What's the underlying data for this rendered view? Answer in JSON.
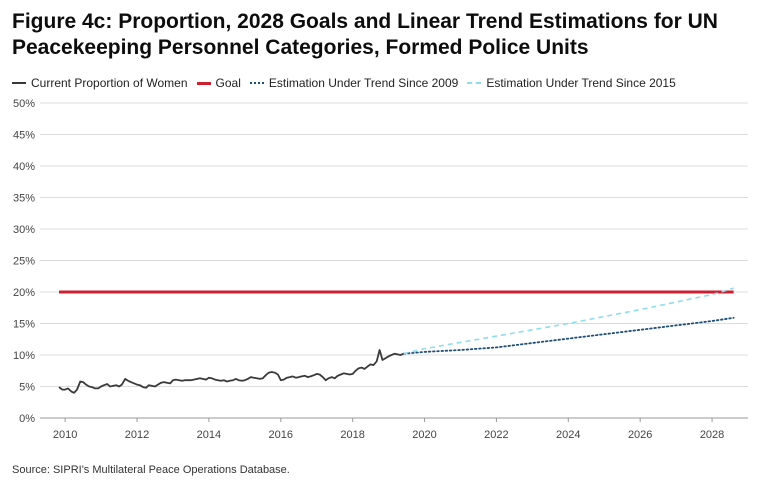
{
  "colors": {
    "current": "#3a3a3a",
    "goal": "#cc1f2f",
    "trend_2009": "#1e4f7a",
    "trend_2015": "#8fdcec",
    "grid": "#dcdcdc",
    "axis_text": "#444444"
  },
  "chart_data": {
    "type": "line",
    "title": "Figure 4c: Proportion, 2028 Goals and Linear Trend Estimations for UN Peacekeeping Personnel Categories, Formed Police Units",
    "xlabel": "",
    "ylabel": "",
    "xlim": [
      2009.3,
      2029.0
    ],
    "ylim": [
      0,
      50
    ],
    "y_unit": "%",
    "grid": "horizontal",
    "legend_position": "top-left",
    "x_ticks": [
      "2010",
      "2012",
      "2014",
      "2016",
      "2018",
      "2020",
      "2022",
      "2024",
      "2026",
      "2028"
    ],
    "y_ticks": [
      "0%",
      "5%",
      "10%",
      "15%",
      "20%",
      "25%",
      "30%",
      "35%",
      "40%",
      "45%",
      "50%"
    ],
    "series": [
      {
        "name": "Current Proportion of Women",
        "style": "solid",
        "x": [
          2009.83,
          2009.92,
          2010.0,
          2010.08,
          2010.17,
          2010.25,
          2010.33,
          2010.42,
          2010.5,
          2010.58,
          2010.67,
          2010.75,
          2010.83,
          2010.92,
          2011.0,
          2011.08,
          2011.17,
          2011.25,
          2011.33,
          2011.42,
          2011.5,
          2011.58,
          2011.67,
          2011.75,
          2011.83,
          2011.92,
          2012.0,
          2012.08,
          2012.17,
          2012.25,
          2012.33,
          2012.42,
          2012.5,
          2012.58,
          2012.67,
          2012.75,
          2012.83,
          2012.92,
          2013.0,
          2013.08,
          2013.17,
          2013.25,
          2013.33,
          2013.42,
          2013.5,
          2013.58,
          2013.67,
          2013.75,
          2013.83,
          2013.92,
          2014.0,
          2014.08,
          2014.17,
          2014.25,
          2014.33,
          2014.42,
          2014.5,
          2014.58,
          2014.67,
          2014.75,
          2014.83,
          2014.92,
          2015.0,
          2015.08,
          2015.17,
          2015.25,
          2015.33,
          2015.42,
          2015.5,
          2015.58,
          2015.67,
          2015.75,
          2015.83,
          2015.92,
          2016.0,
          2016.08,
          2016.17,
          2016.25,
          2016.33,
          2016.42,
          2016.5,
          2016.58,
          2016.67,
          2016.75,
          2016.83,
          2016.92,
          2017.0,
          2017.08,
          2017.17,
          2017.25,
          2017.33,
          2017.42,
          2017.5,
          2017.58,
          2017.67,
          2017.75,
          2017.83,
          2017.92,
          2018.0,
          2018.08,
          2018.17,
          2018.25,
          2018.33,
          2018.42,
          2018.5,
          2018.58,
          2018.67,
          2018.75,
          2018.83,
          2018.92,
          2019.0,
          2019.08,
          2019.17,
          2019.25,
          2019.33,
          2019.42
        ],
        "y": [
          4.9,
          4.5,
          4.5,
          4.7,
          4.2,
          4.0,
          4.5,
          5.8,
          5.7,
          5.3,
          5.0,
          4.9,
          4.7,
          4.7,
          5.0,
          5.2,
          5.4,
          5.0,
          5.1,
          5.2,
          5.0,
          5.3,
          6.2,
          5.9,
          5.7,
          5.5,
          5.3,
          5.2,
          4.9,
          4.8,
          5.2,
          5.1,
          5.0,
          5.3,
          5.6,
          5.7,
          5.6,
          5.5,
          6.0,
          6.1,
          6.0,
          5.9,
          6.0,
          6.0,
          6.0,
          6.1,
          6.2,
          6.3,
          6.2,
          6.1,
          6.4,
          6.3,
          6.1,
          6.0,
          5.9,
          6.0,
          5.8,
          5.9,
          6.0,
          6.2,
          6.0,
          5.9,
          6.0,
          6.2,
          6.5,
          6.4,
          6.3,
          6.2,
          6.3,
          6.8,
          7.2,
          7.3,
          7.2,
          6.9,
          6.0,
          6.1,
          6.4,
          6.5,
          6.6,
          6.4,
          6.5,
          6.6,
          6.7,
          6.5,
          6.6,
          6.8,
          7.0,
          6.9,
          6.5,
          6.0,
          6.3,
          6.5,
          6.3,
          6.7,
          6.9,
          7.1,
          7.0,
          6.9,
          7.0,
          7.5,
          7.9,
          8.0,
          7.8,
          8.2,
          8.5,
          8.4,
          9.0,
          10.8,
          9.2,
          9.5,
          9.8,
          10.0,
          10.2,
          10.1,
          10.0,
          10.2
        ]
      },
      {
        "name": "Goal",
        "style": "solid-thick",
        "x": [
          2009.83,
          2028.6
        ],
        "y": [
          20,
          20
        ]
      },
      {
        "name": "Estimation Under Trend Since 2009",
        "style": "dotted",
        "x": [
          2019.42,
          2020.0,
          2021.0,
          2022.0,
          2023.0,
          2024.0,
          2025.0,
          2026.0,
          2027.0,
          2028.0,
          2028.6
        ],
        "y": [
          10.2,
          10.5,
          10.8,
          11.2,
          11.9,
          12.6,
          13.3,
          14.0,
          14.7,
          15.4,
          15.9
        ]
      },
      {
        "name": "Estimation Under Trend Since 2015",
        "style": "dashed",
        "x": [
          2019.42,
          2020.0,
          2022.0,
          2024.0,
          2026.0,
          2028.0,
          2028.6
        ],
        "y": [
          10.2,
          11.0,
          13.0,
          15.0,
          17.2,
          19.6,
          20.6
        ]
      }
    ]
  },
  "source": "Source: SIPRI's Multilateral Peace Operations Database."
}
